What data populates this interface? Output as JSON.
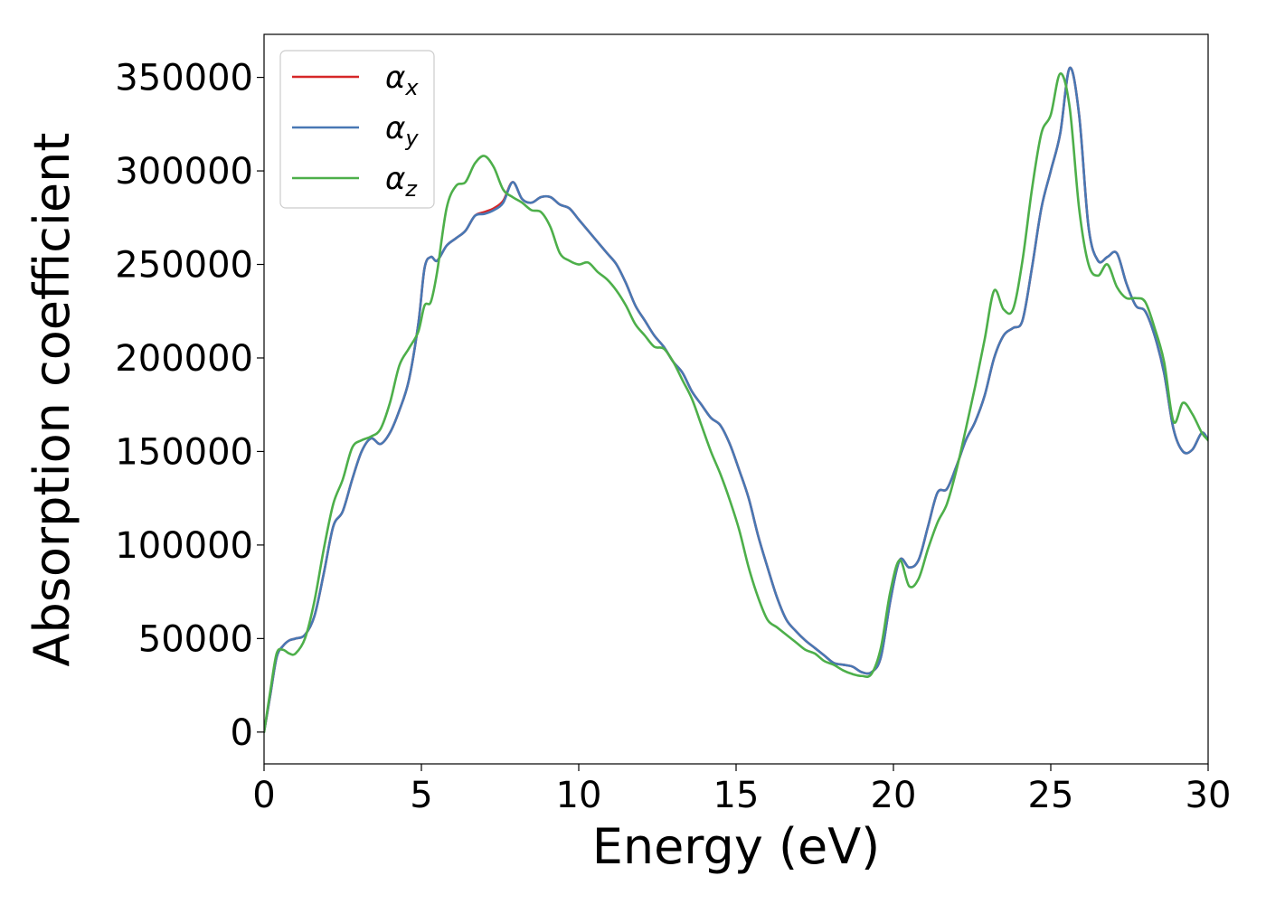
{
  "chart_data": {
    "type": "line",
    "title": "",
    "xlabel": "Energy (eV)",
    "ylabel": "Absorption coefficient",
    "xlim": [
      0,
      30
    ],
    "ylim": [
      -17000,
      373000
    ],
    "xticks": [
      0,
      5,
      10,
      15,
      20,
      25,
      30
    ],
    "yticks": [
      0,
      50000,
      100000,
      150000,
      200000,
      250000,
      300000,
      350000
    ],
    "grid": false,
    "legend_position": "top-left",
    "series": [
      {
        "name": "α",
        "name_subscript": "x",
        "color": "#d62728",
        "x": [
          0,
          0.2,
          0.4,
          0.6,
          0.8,
          1.0,
          1.3,
          1.6,
          1.9,
          2.2,
          2.5,
          2.8,
          3.1,
          3.4,
          3.7,
          4.0,
          4.3,
          4.6,
          4.9,
          5.1,
          5.3,
          5.5,
          5.8,
          6.1,
          6.4,
          6.7,
          7.0,
          7.3,
          7.6,
          7.9,
          8.2,
          8.5,
          8.8,
          9.1,
          9.4,
          9.7,
          10.0,
          10.3,
          10.6,
          10.9,
          11.2,
          11.5,
          11.8,
          12.1,
          12.4,
          12.7,
          13.0,
          13.3,
          13.6,
          13.9,
          14.2,
          14.5,
          14.8,
          15.1,
          15.4,
          15.7,
          16.0,
          16.3,
          16.6,
          16.9,
          17.2,
          17.5,
          17.8,
          18.1,
          18.4,
          18.7,
          19.0,
          19.3,
          19.6,
          19.9,
          20.2,
          20.5,
          20.8,
          21.1,
          21.4,
          21.7,
          22.0,
          22.3,
          22.6,
          22.9,
          23.2,
          23.5,
          23.8,
          24.1,
          24.4,
          24.7,
          25.0,
          25.3,
          25.6,
          25.9,
          26.2,
          26.5,
          26.8,
          27.1,
          27.4,
          27.7,
          28.0,
          28.3,
          28.6,
          28.9,
          29.2,
          29.5,
          29.8,
          30.0
        ],
        "values": [
          0,
          20000,
          40000,
          46000,
          49000,
          50000,
          52000,
          62000,
          85000,
          110000,
          118000,
          135000,
          150000,
          157000,
          154000,
          160000,
          172000,
          188000,
          218000,
          248000,
          254000,
          252000,
          260000,
          264000,
          268000,
          276000,
          278000,
          280000,
          284000,
          294000,
          285000,
          283000,
          286000,
          286000,
          282000,
          280000,
          274000,
          268000,
          262000,
          256000,
          250000,
          240000,
          228000,
          220000,
          212000,
          206000,
          198000,
          192000,
          182000,
          175000,
          168000,
          164000,
          154000,
          140000,
          125000,
          105000,
          88000,
          72000,
          60000,
          54000,
          49000,
          45000,
          41000,
          37000,
          36000,
          35000,
          32000,
          32000,
          40000,
          70000,
          92000,
          88000,
          92000,
          110000,
          128000,
          130000,
          142000,
          156000,
          166000,
          180000,
          200000,
          212000,
          216000,
          220000,
          248000,
          280000,
          300000,
          320000,
          355000,
          330000,
          270000,
          252000,
          254000,
          256000,
          240000,
          228000,
          225000,
          212000,
          192000,
          162000,
          150000,
          151000,
          160000,
          156000
        ]
      },
      {
        "name": "α",
        "name_subscript": "y",
        "color": "#4878b4",
        "x": [
          0,
          0.2,
          0.4,
          0.6,
          0.8,
          1.0,
          1.3,
          1.6,
          1.9,
          2.2,
          2.5,
          2.8,
          3.1,
          3.4,
          3.7,
          4.0,
          4.3,
          4.6,
          4.9,
          5.1,
          5.3,
          5.5,
          5.8,
          6.1,
          6.4,
          6.7,
          7.0,
          7.3,
          7.6,
          7.9,
          8.2,
          8.5,
          8.8,
          9.1,
          9.4,
          9.7,
          10.0,
          10.3,
          10.6,
          10.9,
          11.2,
          11.5,
          11.8,
          12.1,
          12.4,
          12.7,
          13.0,
          13.3,
          13.6,
          13.9,
          14.2,
          14.5,
          14.8,
          15.1,
          15.4,
          15.7,
          16.0,
          16.3,
          16.6,
          16.9,
          17.2,
          17.5,
          17.8,
          18.1,
          18.4,
          18.7,
          19.0,
          19.3,
          19.6,
          19.9,
          20.2,
          20.5,
          20.8,
          21.1,
          21.4,
          21.7,
          22.0,
          22.3,
          22.6,
          22.9,
          23.2,
          23.5,
          23.8,
          24.1,
          24.4,
          24.7,
          25.0,
          25.3,
          25.6,
          25.9,
          26.2,
          26.5,
          26.8,
          27.1,
          27.4,
          27.7,
          28.0,
          28.3,
          28.6,
          28.9,
          29.2,
          29.5,
          29.8,
          30.0
        ],
        "values": [
          0,
          20000,
          40000,
          46000,
          49000,
          50000,
          52000,
          62000,
          85000,
          110000,
          118000,
          135000,
          150000,
          157000,
          154000,
          160000,
          172000,
          188000,
          218000,
          248000,
          254000,
          252000,
          260000,
          264000,
          268000,
          276000,
          277000,
          279000,
          283000,
          294000,
          285000,
          283000,
          286000,
          286000,
          282000,
          280000,
          274000,
          268000,
          262000,
          256000,
          250000,
          240000,
          228000,
          220000,
          212000,
          206000,
          198000,
          192000,
          182000,
          175000,
          168000,
          164000,
          154000,
          140000,
          125000,
          105000,
          88000,
          72000,
          60000,
          54000,
          49000,
          45000,
          41000,
          37000,
          36000,
          35000,
          32000,
          32000,
          40000,
          70000,
          92000,
          88000,
          92000,
          110000,
          128000,
          130000,
          142000,
          156000,
          166000,
          180000,
          200000,
          212000,
          216000,
          220000,
          248000,
          280000,
          300000,
          320000,
          355000,
          330000,
          270000,
          252000,
          254000,
          256000,
          240000,
          228000,
          225000,
          212000,
          192000,
          162000,
          150000,
          151000,
          160000,
          156000
        ]
      },
      {
        "name": "α",
        "name_subscript": "z",
        "color": "#4daf4a",
        "x": [
          0,
          0.2,
          0.4,
          0.6,
          0.8,
          1.0,
          1.3,
          1.6,
          1.9,
          2.2,
          2.5,
          2.8,
          3.1,
          3.4,
          3.7,
          4.0,
          4.3,
          4.6,
          4.9,
          5.1,
          5.3,
          5.5,
          5.8,
          6.1,
          6.4,
          6.7,
          7.0,
          7.3,
          7.6,
          7.9,
          8.2,
          8.5,
          8.8,
          9.1,
          9.4,
          9.7,
          10.0,
          10.3,
          10.6,
          10.9,
          11.2,
          11.5,
          11.8,
          12.1,
          12.4,
          12.7,
          13.0,
          13.3,
          13.6,
          13.9,
          14.2,
          14.5,
          14.8,
          15.1,
          15.4,
          15.7,
          16.0,
          16.3,
          16.6,
          16.9,
          17.2,
          17.5,
          17.8,
          18.1,
          18.4,
          18.7,
          19.0,
          19.3,
          19.6,
          19.9,
          20.2,
          20.5,
          20.8,
          21.1,
          21.4,
          21.7,
          22.0,
          22.3,
          22.6,
          22.9,
          23.2,
          23.5,
          23.8,
          24.1,
          24.4,
          24.7,
          25.0,
          25.3,
          25.6,
          25.9,
          26.2,
          26.5,
          26.8,
          27.1,
          27.4,
          27.7,
          28.0,
          28.3,
          28.6,
          28.9,
          29.2,
          29.5,
          29.8,
          30.0
        ],
        "values": [
          0,
          22000,
          42000,
          44000,
          42000,
          42000,
          50000,
          70000,
          98000,
          122000,
          135000,
          152000,
          156000,
          158000,
          162000,
          176000,
          196000,
          205000,
          214000,
          228000,
          230000,
          246000,
          280000,
          292000,
          294000,
          304000,
          308000,
          302000,
          290000,
          286000,
          283000,
          279000,
          278000,
          270000,
          256000,
          252000,
          250000,
          251000,
          246000,
          242000,
          236000,
          228000,
          218000,
          212000,
          206000,
          205000,
          198000,
          188000,
          178000,
          164000,
          150000,
          138000,
          124000,
          108000,
          88000,
          72000,
          60000,
          56000,
          52000,
          48000,
          44000,
          42000,
          38000,
          36000,
          33000,
          31000,
          30000,
          31000,
          45000,
          75000,
          92000,
          78000,
          82000,
          98000,
          112000,
          122000,
          140000,
          162000,
          185000,
          210000,
          236000,
          226000,
          226000,
          252000,
          290000,
          320000,
          330000,
          352000,
          334000,
          280000,
          250000,
          244000,
          250000,
          238000,
          232000,
          232000,
          230000,
          216000,
          198000,
          166000,
          176000,
          170000,
          160000,
          156000
        ]
      }
    ]
  }
}
